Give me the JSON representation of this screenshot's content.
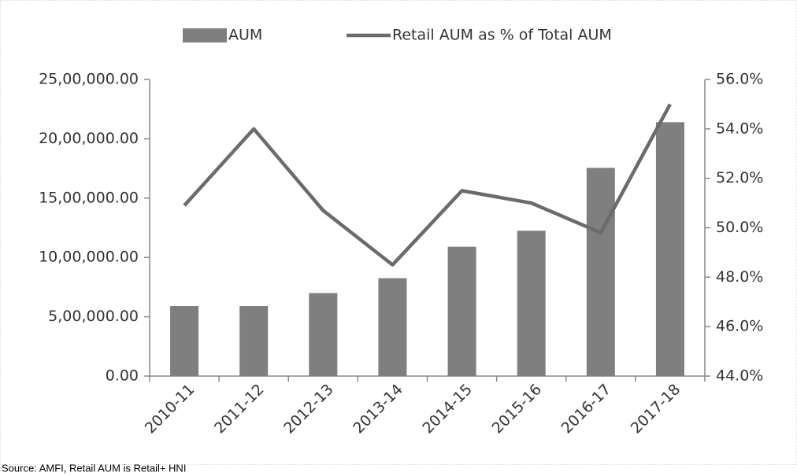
{
  "chart_data": {
    "type": "bar_line",
    "categories": [
      "2010-11",
      "2011-12",
      "2012-13",
      "2013-14",
      "2014-15",
      "2015-16",
      "2016-17",
      "2017-18"
    ],
    "series": [
      {
        "name": "AUM",
        "type": "bar",
        "color": "#7f7f7f",
        "values": [
          590000,
          590000,
          700000,
          825000,
          1090000,
          1225000,
          1755000,
          2140000
        ]
      },
      {
        "name": "Retail AUM as % of Total AUM",
        "type": "line",
        "axis": "y2",
        "color": "#6b6b6b",
        "values": [
          50.9,
          54.0,
          50.7,
          48.5,
          51.5,
          51.0,
          49.8,
          55.0
        ]
      }
    ],
    "ylim": [
      0,
      2500000
    ],
    "yticks": [
      {
        "value": 0,
        "label": "0.00"
      },
      {
        "value": 500000,
        "label": "5,00,000.00"
      },
      {
        "value": 1000000,
        "label": "10,00,000.00"
      },
      {
        "value": 1500000,
        "label": "15,00,000.00"
      },
      {
        "value": 2000000,
        "label": "20,00,000.00"
      },
      {
        "value": 2500000,
        "label": "25,00,000.00"
      }
    ],
    "y2lim": [
      44,
      56
    ],
    "y2ticks": [
      {
        "value": 44,
        "label": "44.0%"
      },
      {
        "value": 46,
        "label": "46.0%"
      },
      {
        "value": 48,
        "label": "48.0%"
      },
      {
        "value": 50,
        "label": "50.0%"
      },
      {
        "value": 52,
        "label": "52.0%"
      },
      {
        "value": 54,
        "label": "54.0%"
      },
      {
        "value": 56,
        "label": "56.0%"
      }
    ],
    "grid": false,
    "legend": "top",
    "source": "Source: AMFI, Retail AUM is Retail+ HNI"
  }
}
